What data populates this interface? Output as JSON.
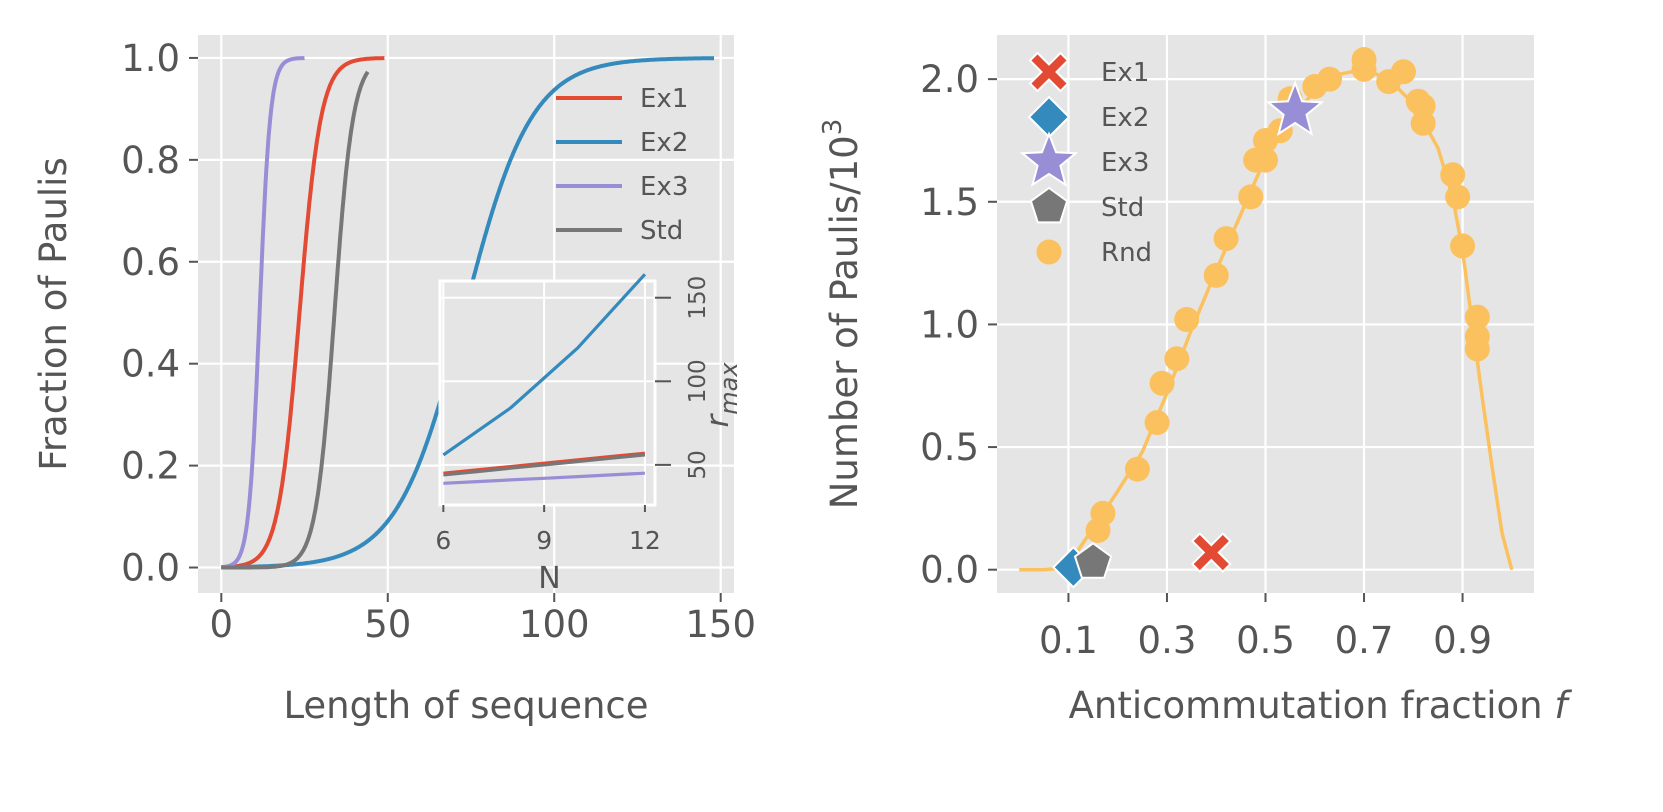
{
  "colors": {
    "ex1": "#E24A33",
    "ex2": "#348ABD",
    "ex3": "#988ED5",
    "std": "#777777",
    "rnd": "#FBC15E",
    "panel_bg": "#E5E5E5",
    "grid": "#FFFFFF",
    "text": "#555555"
  },
  "chart_data": [
    {
      "type": "line",
      "xlabel": "Length of sequence",
      "ylabel": "Fraction of Paulis",
      "xlim": [
        -7,
        154
      ],
      "ylim": [
        -0.05,
        1.045
      ],
      "xticks": [
        0,
        50,
        100,
        150
      ],
      "xtick_labels": [
        "0",
        "50",
        "100",
        "150"
      ],
      "yticks": [
        0.0,
        0.2,
        0.4,
        0.6,
        0.8,
        1.0
      ],
      "ytick_labels": [
        "0.0",
        "0.2",
        "0.4",
        "0.6",
        "0.8",
        "1.0"
      ],
      "legend": [
        "Ex1",
        "Ex2",
        "Ex3",
        "Std"
      ],
      "legend_position": "upper right",
      "series": [
        {
          "name": "Ex1",
          "color_key": "ex1",
          "midpoint": 23.5,
          "width": 3.2,
          "x_max": 49
        },
        {
          "name": "Ex2",
          "color_key": "ex2",
          "midpoint": 73,
          "width": 10,
          "x_max": 148
        },
        {
          "name": "Ex3",
          "color_key": "ex3",
          "midpoint": 11.5,
          "width": 1.6,
          "x_max": 25
        },
        {
          "name": "Std",
          "color_key": "std",
          "midpoint": 34,
          "width": 2.8,
          "x_max": 44
        }
      ],
      "series_note": "each curve is a cumulative logistic: y = 1/(1+exp(-(x-midpoint)/width)), from x=0 to x_max"
    },
    {
      "type": "line",
      "inset": true,
      "xlabel": "N",
      "ylabel": "r_max",
      "ylabel_parts": [
        "r",
        "max"
      ],
      "xlim": [
        5.9,
        12.3
      ],
      "ylim": [
        26,
        160
      ],
      "xticks": [
        6,
        9,
        12
      ],
      "xtick_labels": [
        "6",
        "9",
        "12"
      ],
      "yticks": [
        50,
        100,
        150
      ],
      "ytick_labels": [
        "50",
        "100",
        "150"
      ],
      "x": [
        6,
        7,
        8,
        9,
        10,
        11,
        12
      ],
      "series": [
        {
          "name": "Ex2",
          "color_key": "ex2",
          "values": [
            56,
            70,
            84,
            102,
            120,
            142,
            164
          ]
        },
        {
          "name": "Ex1",
          "color_key": "ex1",
          "values": [
            45,
            47,
            49,
            51,
            53,
            55,
            57
          ]
        },
        {
          "name": "Std",
          "color_key": "std",
          "values": [
            44,
            46,
            48,
            50,
            52,
            54,
            56
          ]
        },
        {
          "name": "Ex3",
          "color_key": "ex3",
          "values": [
            39,
            40,
            41,
            42,
            43,
            44,
            45
          ]
        }
      ]
    },
    {
      "type": "scatter",
      "xlabel": "Anticommutation fraction f",
      "xlabel_main": "Anticommutation fraction ",
      "xlabel_italic": "f",
      "ylabel": "Number of Paulis/10^3",
      "ylabel_main": "Number of Paulis/10",
      "ylabel_sup": "3",
      "xlim": [
        -0.045,
        1.045
      ],
      "ylim": [
        -0.095,
        2.18
      ],
      "xticks": [
        0.1,
        0.3,
        0.5,
        0.7,
        0.9
      ],
      "xtick_labels": [
        "0.1",
        "0.3",
        "0.5",
        "0.7",
        "0.9"
      ],
      "yticks": [
        0.0,
        0.5,
        1.0,
        1.5,
        2.0
      ],
      "ytick_labels": [
        "0.0",
        "0.5",
        "1.0",
        "1.5",
        "2.0"
      ],
      "legend": [
        "Ex1",
        "Ex2",
        "Ex3",
        "Std",
        "Rnd"
      ],
      "legend_position": "upper left",
      "curve": {
        "name": "Rnd fit",
        "color_key": "rnd",
        "points": [
          [
            0.0,
            0.0
          ],
          [
            0.05,
            0.0
          ],
          [
            0.08,
            0.005
          ],
          [
            0.1,
            0.03
          ],
          [
            0.12,
            0.08
          ],
          [
            0.15,
            0.17
          ],
          [
            0.2,
            0.32
          ],
          [
            0.25,
            0.48
          ],
          [
            0.3,
            0.72
          ],
          [
            0.35,
            0.98
          ],
          [
            0.4,
            1.22
          ],
          [
            0.45,
            1.45
          ],
          [
            0.5,
            1.68
          ],
          [
            0.55,
            1.84
          ],
          [
            0.6,
            1.95
          ],
          [
            0.65,
            2.02
          ],
          [
            0.7,
            2.04
          ],
          [
            0.75,
            2.0
          ],
          [
            0.8,
            1.9
          ],
          [
            0.85,
            1.72
          ],
          [
            0.88,
            1.52
          ],
          [
            0.9,
            1.3
          ],
          [
            0.92,
            1.0
          ],
          [
            0.94,
            0.7
          ],
          [
            0.96,
            0.42
          ],
          [
            0.98,
            0.15
          ],
          [
            1.0,
            0.0
          ]
        ]
      },
      "markers": [
        {
          "name": "Ex1",
          "shape": "x",
          "color_key": "ex1",
          "x": 0.39,
          "y": 0.07
        },
        {
          "name": "Ex2",
          "shape": "diamond",
          "color_key": "ex2",
          "x": 0.11,
          "y": 0.01
        },
        {
          "name": "Ex3",
          "shape": "star",
          "color_key": "ex3",
          "x": 0.56,
          "y": 1.87
        },
        {
          "name": "Std",
          "shape": "pentagon",
          "color_key": "std",
          "x": 0.15,
          "y": 0.03
        }
      ],
      "rnd_points": {
        "name": "Rnd",
        "color_key": "rnd",
        "x": [
          0.16,
          0.17,
          0.24,
          0.28,
          0.29,
          0.32,
          0.34,
          0.4,
          0.42,
          0.47,
          0.48,
          0.5,
          0.5,
          0.53,
          0.55,
          0.6,
          0.63,
          0.7,
          0.7,
          0.75,
          0.78,
          0.81,
          0.82,
          0.82,
          0.88,
          0.89,
          0.9,
          0.93,
          0.93,
          0.93
        ],
        "y": [
          0.16,
          0.23,
          0.41,
          0.6,
          0.76,
          0.86,
          1.02,
          1.2,
          1.35,
          1.52,
          1.67,
          1.67,
          1.75,
          1.79,
          1.92,
          1.97,
          2.0,
          2.04,
          2.08,
          1.99,
          2.03,
          1.91,
          1.89,
          1.82,
          1.61,
          1.52,
          1.32,
          1.03,
          0.95,
          0.9
        ]
      }
    }
  ]
}
